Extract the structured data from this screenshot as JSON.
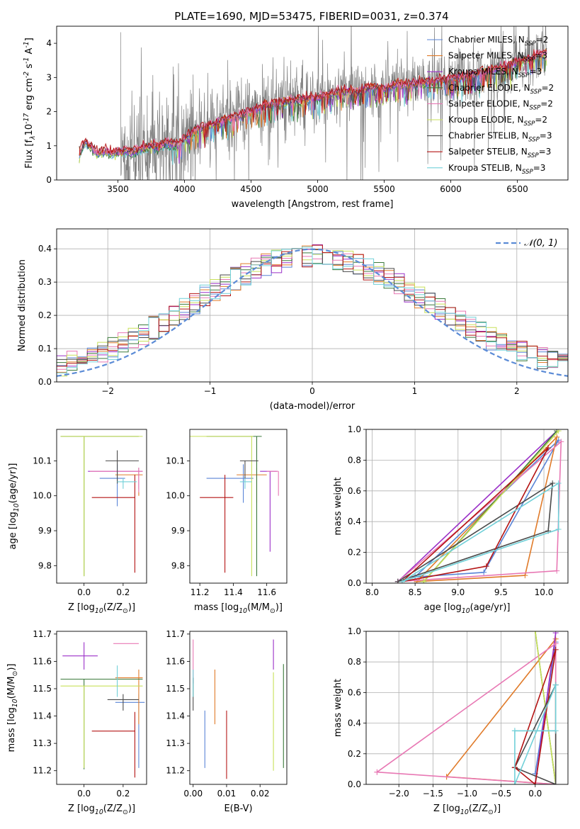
{
  "title": "PLATE=1690, MJD=53475, FIBERID=0031, z=0.374",
  "colors": {
    "chabrier_miles": "#5a84d6",
    "salpeter_miles": "#e07b2a",
    "kroupa_miles": "#9b30c8",
    "chabrier_elodie": "#3c7a3c",
    "salpeter_elodie": "#e878b4",
    "kroupa_elodie": "#c8e05a",
    "chabrier_stelib": "#4a4a4a",
    "salpeter_stelib": "#b41414",
    "kroupa_stelib": "#70d0d8",
    "data": "#808080",
    "gaussian": "#5b8bd6",
    "grid": "#b0b0b0"
  },
  "chart_data": [
    {
      "type": "line",
      "title": "PLATE=1690, MJD=53475, FIBERID=0031, z=0.374",
      "xlabel": "wavelength [Angstrom, rest frame]",
      "ylabel": "Flux [f$_\\lambda$10$^{-17}$ erg cm$^{-2}$ s$^{-1}$ A$^{-1}$]",
      "xlim": [
        3040,
        6880
      ],
      "ylim": [
        0,
        4.5
      ],
      "xticks": [
        3500,
        4000,
        4500,
        5000,
        5500,
        6000,
        6500
      ],
      "yticks": [
        0,
        1,
        2,
        3,
        4
      ],
      "grid": false,
      "legend": "top-right",
      "series": [
        {
          "name": "Chabrier MILES, N$_{SSP}$=2",
          "key": "chabrier_miles"
        },
        {
          "name": "Salpeter MILES, N$_{SSP}$=3",
          "key": "salpeter_miles"
        },
        {
          "name": "Kroupa MILES, N$_{SSP}$=3",
          "key": "kroupa_miles"
        },
        {
          "name": "Chabrier ELODIE, N$_{SSP}$=2",
          "key": "chabrier_elodie"
        },
        {
          "name": "Salpeter ELODIE, N$_{SSP}$=2",
          "key": "salpeter_elodie"
        },
        {
          "name": "Kroupa ELODIE, N$_{SSP}$=2",
          "key": "kroupa_elodie"
        },
        {
          "name": "Chabrier STELIB, N$_{SSP}$=3",
          "key": "chabrier_stelib"
        },
        {
          "name": "Salpeter STELIB, N$_{SSP}$=3",
          "key": "salpeter_stelib"
        },
        {
          "name": "Kroupa STELIB, N$_{SSP}$=3",
          "key": "kroupa_stelib"
        }
      ],
      "model_continuum": {
        "x": [
          3210,
          3250,
          3300,
          3350,
          3400,
          3450,
          3500,
          3550,
          3600,
          3650,
          3700,
          3750,
          3800,
          3850,
          3900,
          3950,
          4000,
          4100,
          4200,
          4300,
          4400,
          4500,
          4600,
          4700,
          4800,
          4900,
          5000,
          5100,
          5200,
          5300,
          5400,
          5500,
          5600,
          5700,
          5800,
          5900,
          6000,
          6100,
          6200,
          6300,
          6400,
          6500,
          6600,
          6720
        ],
        "y": [
          0.75,
          1.1,
          0.95,
          0.75,
          0.85,
          0.75,
          0.8,
          0.85,
          0.8,
          0.85,
          0.95,
          1.0,
          0.95,
          1.05,
          1.05,
          1.0,
          1.2,
          1.5,
          1.6,
          1.75,
          1.85,
          2.0,
          2.15,
          2.25,
          2.3,
          2.35,
          2.4,
          2.5,
          2.6,
          2.55,
          2.7,
          2.65,
          2.8,
          2.75,
          2.85,
          2.9,
          2.95,
          3.0,
          3.1,
          3.2,
          3.3,
          3.45,
          3.55,
          3.75
        ]
      },
      "data_start": 3520,
      "data_end": 6720
    },
    {
      "type": "line",
      "xlabel": "(data-model)/error",
      "ylabel": "Normed distribution",
      "xlim": [
        -2.5,
        2.5
      ],
      "ylim": [
        0,
        0.46
      ],
      "xticks": [
        -2,
        -1,
        0,
        1,
        2
      ],
      "yticks": [
        0.0,
        0.1,
        0.2,
        0.3,
        0.4
      ],
      "grid": true,
      "legend": "top-right",
      "gaussian_label": "𝒩(0, 1)",
      "bin_width": 0.1
    },
    {
      "type": "scatter",
      "xlabel": "Z [log$_{10}$(Z/Z$_\\odot$)]",
      "ylabel": "age  [log$_{10}$(age/yr)]",
      "xlim": [
        -0.14,
        0.32
      ],
      "ylim": [
        9.75,
        10.19
      ],
      "xticks": [
        0.0,
        0.2
      ],
      "yticks": [
        9.8,
        9.9,
        10.0,
        10.1
      ],
      "points": [
        {
          "key": "chabrier_miles",
          "x": 0.17,
          "y": 10.05,
          "xerr": [
            0.09,
            0.04
          ],
          "yerr": [
            0.08,
            0.04
          ]
        },
        {
          "key": "salpeter_miles",
          "x": 0.28,
          "y": 10.06,
          "xerr": [
            0.12,
            0.02
          ],
          "yerr": [
            0.06,
            0.02
          ]
        },
        {
          "key": "kroupa_miles",
          "x": 0.28,
          "y": 10.07,
          "xerr": [
            0.26,
            0.02
          ],
          "yerr": [
            0.05,
            0.01
          ]
        },
        {
          "key": "chabrier_elodie",
          "x": 0.0,
          "y": 10.17,
          "xerr": [
            0.12,
            0.28
          ],
          "yerr": [
            0.4,
            0.0
          ]
        },
        {
          "key": "salpeter_elodie",
          "x": 0.28,
          "y": 10.07,
          "xerr": [
            0.25,
            0.02
          ],
          "yerr": [
            0.06,
            0.01
          ]
        },
        {
          "key": "kroupa_elodie",
          "x": 0.0,
          "y": 10.17,
          "xerr": [
            0.12,
            0.3
          ],
          "yerr": [
            0.4,
            0.0
          ]
        },
        {
          "key": "chabrier_stelib",
          "x": 0.17,
          "y": 10.1,
          "xerr": [
            0.06,
            0.11
          ],
          "yerr": [
            0.065,
            0.03
          ]
        },
        {
          "key": "salpeter_stelib",
          "x": 0.26,
          "y": 9.995,
          "xerr": [
            0.22,
            0.0
          ],
          "yerr": [
            0.215,
            0.065
          ]
        },
        {
          "key": "kroupa_stelib",
          "x": 0.2,
          "y": 10.04,
          "xerr": [
            0.03,
            0.07
          ],
          "yerr": [
            0.02,
            0.01
          ]
        }
      ]
    },
    {
      "type": "scatter",
      "xlabel": "mass [log$_{10}$(M/M$_\\odot$)]",
      "xlim": [
        11.14,
        11.72
      ],
      "ylim": [
        9.75,
        10.19
      ],
      "xticks": [
        11.2,
        11.4,
        11.6
      ],
      "yticks": [
        9.8,
        9.9,
        10.0,
        10.1
      ],
      "points": [
        {
          "key": "chabrier_miles",
          "x": 11.46,
          "y": 10.05,
          "xerr": [
            0.22,
            0.06
          ],
          "yerr": [
            0.07,
            0.04
          ]
        },
        {
          "key": "salpeter_miles",
          "x": 11.54,
          "y": 10.06,
          "xerr": [
            0.12,
            0.06
          ],
          "yerr": [
            0.08,
            0.02
          ]
        },
        {
          "key": "kroupa_miles",
          "x": 11.62,
          "y": 10.07,
          "xerr": [
            0.06,
            0.04
          ],
          "yerr": [
            0.23,
            0.0
          ]
        },
        {
          "key": "chabrier_elodie",
          "x": 11.54,
          "y": 10.17,
          "xerr": [
            0.3,
            0.03
          ],
          "yerr": [
            0.4,
            0.0
          ]
        },
        {
          "key": "salpeter_elodie",
          "x": 11.67,
          "y": 10.07,
          "xerr": [
            0.07,
            0.0
          ],
          "yerr": [
            0.07,
            0.0
          ]
        },
        {
          "key": "kroupa_elodie",
          "x": 11.51,
          "y": 10.17,
          "xerr": [
            0.37,
            0.01
          ],
          "yerr": [
            0.4,
            0.0
          ]
        },
        {
          "key": "chabrier_stelib",
          "x": 11.47,
          "y": 10.1,
          "xerr": [
            0.03,
            0.08
          ],
          "yerr": [
            0.06,
            0.0
          ]
        },
        {
          "key": "salpeter_stelib",
          "x": 11.35,
          "y": 9.995,
          "xerr": [
            0.15,
            0.05
          ],
          "yerr": [
            0.215,
            0.065
          ]
        },
        {
          "key": "kroupa_stelib",
          "x": 11.47,
          "y": 10.04,
          "xerr": [
            0.03,
            0.04
          ],
          "yerr": [
            0.02,
            0.01
          ]
        }
      ]
    },
    {
      "type": "line",
      "xlabel": "age  [log$_{10}$(age/yr)]",
      "ylabel": "mass weight",
      "xlim": [
        7.93,
        10.28
      ],
      "ylim": [
        0,
        1
      ],
      "xticks": [
        8.0,
        8.5,
        9.0,
        9.5,
        10.0
      ],
      "yticks": [
        0.0,
        0.2,
        0.4,
        0.6,
        0.8,
        1.0
      ],
      "grid": true,
      "series": [
        {
          "key": "chabrier_miles",
          "x": [
            8.5,
            9.3,
            10.17,
            8.5
          ],
          "y": [
            0.04,
            0.07,
            0.93,
            0.04
          ]
        },
        {
          "key": "salpeter_miles",
          "x": [
            8.52,
            9.78,
            10.15,
            8.52
          ],
          "y": [
            0.01,
            0.05,
            0.95,
            0.01
          ]
        },
        {
          "key": "kroupa_miles",
          "x": [
            8.3,
            10.15,
            8.3
          ],
          "y": [
            0.01,
            0.99,
            0.01
          ]
        },
        {
          "key": "chabrier_elodie",
          "x": [
            8.6,
            10.15,
            8.6
          ],
          "y": [
            0.01,
            0.99,
            0.01
          ]
        },
        {
          "key": "salpeter_elodie",
          "x": [
            8.3,
            10.15,
            10.2,
            8.3
          ],
          "y": [
            0.01,
            0.08,
            0.92,
            0.01
          ]
        },
        {
          "key": "kroupa_elodie",
          "x": [
            8.6,
            10.17,
            8.6
          ],
          "y": [
            0.01,
            0.99,
            0.01
          ]
        },
        {
          "key": "chabrier_stelib",
          "x": [
            8.3,
            10.05,
            10.1,
            8.3
          ],
          "y": [
            0.01,
            0.34,
            0.65,
            0.01
          ]
        },
        {
          "key": "salpeter_stelib",
          "x": [
            8.35,
            9.33,
            10.05,
            8.35
          ],
          "y": [
            0.01,
            0.11,
            0.88,
            0.01
          ]
        },
        {
          "key": "kroupa_stelib",
          "x": [
            8.35,
            10.17,
            10.17,
            8.35
          ],
          "y": [
            0.01,
            0.35,
            0.65,
            0.01
          ]
        }
      ]
    },
    {
      "type": "scatter",
      "xlabel": "Z [log$_{10}$(Z/Z$_\\odot$)]",
      "ylabel": "mass [log$_{10}$(M/M$_\\odot$)]",
      "xlim": [
        -0.14,
        0.32
      ],
      "ylim": [
        11.15,
        11.71
      ],
      "xticks": [
        0.0,
        0.2
      ],
      "yticks": [
        11.2,
        11.3,
        11.4,
        11.5,
        11.6,
        11.7
      ],
      "points": [
        {
          "key": "chabrier_miles",
          "x": 0.28,
          "y": 11.45,
          "xerr": [
            0.12,
            0.03
          ],
          "yerr": [
            0.24,
            0.03
          ]
        },
        {
          "key": "salpeter_miles",
          "x": 0.28,
          "y": 11.54,
          "xerr": [
            0.12,
            0.02
          ],
          "yerr": [
            0.17,
            0.03
          ]
        },
        {
          "key": "kroupa_miles",
          "x": 0.0,
          "y": 11.62,
          "xerr": [
            0.11,
            0.07
          ],
          "yerr": [
            0.05,
            0.05
          ]
        },
        {
          "key": "chabrier_elodie",
          "x": 0.0,
          "y": 11.535,
          "xerr": [
            0.12,
            0.3
          ],
          "yerr": [
            0.33,
            0.0
          ]
        },
        {
          "key": "salpeter_elodie",
          "x": 0.28,
          "y": 11.665,
          "xerr": [
            0.13,
            0.0
          ],
          "yerr": [
            0.0,
            0.0
          ]
        },
        {
          "key": "kroupa_elodie",
          "x": 0.0,
          "y": 11.51,
          "xerr": [
            0.12,
            0.3
          ],
          "yerr": [
            0.3,
            0.0
          ]
        },
        {
          "key": "chabrier_stelib",
          "x": 0.2,
          "y": 11.46,
          "xerr": [
            0.08,
            0.08
          ],
          "yerr": [
            0.04,
            0.02
          ]
        },
        {
          "key": "salpeter_stelib",
          "x": 0.26,
          "y": 11.345,
          "xerr": [
            0.22,
            0.0
          ],
          "yerr": [
            0.17,
            0.07
          ]
        },
        {
          "key": "kroupa_stelib",
          "x": 0.17,
          "y": 11.52,
          "xerr": [
            0.0,
            0.0
          ],
          "yerr": [
            0.05,
            0.065
          ]
        }
      ]
    },
    {
      "type": "scatter",
      "xlabel": "E(B-V)",
      "xlim": [
        -0.001,
        0.028
      ],
      "ylim": [
        11.15,
        11.71
      ],
      "xticks": [
        0.0,
        0.01,
        0.02
      ],
      "yticks": [
        11.2,
        11.3,
        11.4,
        11.5,
        11.6,
        11.7
      ],
      "points": [
        {
          "key": "chabrier_miles",
          "x": 0.0035,
          "y": 11.3,
          "yerr": [
            0.09,
            0.12
          ]
        },
        {
          "key": "salpeter_miles",
          "x": 0.0065,
          "y": 11.47,
          "yerr": [
            0.1,
            0.1
          ]
        },
        {
          "key": "kroupa_miles",
          "x": 0.024,
          "y": 11.62,
          "yerr": [
            0.05,
            0.06
          ]
        },
        {
          "key": "chabrier_elodie",
          "x": 0.027,
          "y": 11.4,
          "yerr": [
            0.19,
            0.19
          ]
        },
        {
          "key": "salpeter_elodie",
          "x": 0.0,
          "y": 11.6,
          "yerr": [
            0.08,
            0.08
          ]
        },
        {
          "key": "kroupa_elodie",
          "x": 0.024,
          "y": 11.38,
          "yerr": [
            0.18,
            0.18
          ]
        },
        {
          "key": "chabrier_stelib",
          "x": 0.0,
          "y": 11.47,
          "yerr": [
            0.05,
            0.07
          ]
        },
        {
          "key": "salpeter_stelib",
          "x": 0.01,
          "y": 11.3,
          "yerr": [
            0.13,
            0.12
          ]
        },
        {
          "key": "kroupa_stelib",
          "x": 0.0,
          "y": 11.52,
          "yerr": [
            0.05,
            0.05
          ]
        }
      ]
    },
    {
      "type": "line",
      "xlabel": "Z [log$_{10}$(Z/Z$_\\odot$)]",
      "ylabel": "mass weight",
      "xlim": [
        -2.48,
        0.48
      ],
      "ylim": [
        0,
        1
      ],
      "xticks": [
        -2.0,
        -1.5,
        -1.0,
        -0.5,
        0.0
      ],
      "yticks": [
        0.0,
        0.2,
        0.4,
        0.6,
        0.8,
        1.0
      ],
      "grid": true,
      "series": [
        {
          "key": "chabrier_miles",
          "x": [
            0.0,
            0.3,
            0.0
          ],
          "y": [
            0.07,
            0.93,
            0.07
          ]
        },
        {
          "key": "salpeter_miles",
          "x": [
            -1.3,
            0.3,
            0.3,
            -1.3
          ],
          "y": [
            0.05,
            0.95,
            0.0,
            0.05
          ]
        },
        {
          "key": "kroupa_miles",
          "x": [
            0.0,
            0.3,
            0.0
          ],
          "y": [
            0.0,
            0.99,
            0.0
          ]
        },
        {
          "key": "chabrier_elodie",
          "x": [
            0.0,
            0.3,
            0.0
          ],
          "y": [
            1.0,
            0.0,
            1.0
          ]
        },
        {
          "key": "salpeter_elodie",
          "x": [
            -2.32,
            0.3,
            0.3,
            -2.32
          ],
          "y": [
            0.08,
            0.92,
            0.0,
            0.08
          ]
        },
        {
          "key": "kroupa_elodie",
          "x": [
            0.0,
            0.3,
            0.0
          ],
          "y": [
            1.0,
            0.0,
            1.0
          ]
        },
        {
          "key": "chabrier_stelib",
          "x": [
            -0.3,
            0.3,
            0.3,
            -0.3
          ],
          "y": [
            0.11,
            0.65,
            0.0,
            0.11
          ]
        },
        {
          "key": "salpeter_stelib",
          "x": [
            -0.3,
            0.0,
            0.3,
            -0.3
          ],
          "y": [
            0.11,
            0.0,
            0.88,
            0.11
          ]
        },
        {
          "key": "kroupa_stelib",
          "x": [
            -0.3,
            -0.3,
            0.3,
            0.3,
            -0.3
          ],
          "y": [
            0.35,
            0.0,
            0.65,
            0.35,
            0.35
          ]
        }
      ]
    }
  ]
}
